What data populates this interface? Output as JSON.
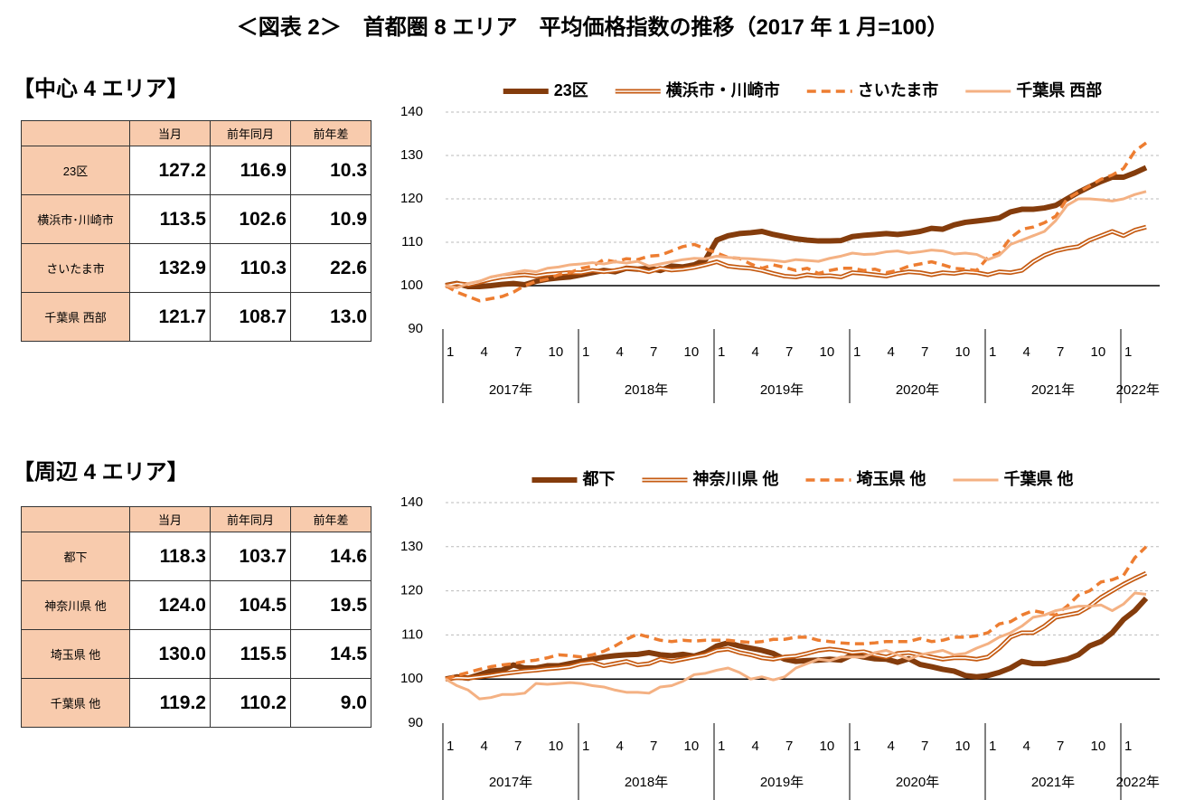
{
  "title": "＜図表 2＞　首都圏 8 エリア　平均価格指数の推移（2017 年 1 月=100）",
  "sections": [
    {
      "heading": "【中心 4 エリア】",
      "table": {
        "header": [
          "当月",
          "前年同月",
          "前年差"
        ],
        "rows": [
          [
            "23区",
            "127.2",
            "116.9",
            "10.3"
          ],
          [
            "横浜市･川崎市",
            "113.5",
            "102.6",
            "10.9"
          ],
          [
            "さいたま市",
            "132.9",
            "110.3",
            "22.6"
          ],
          [
            "千葉県 西部",
            "121.7",
            "108.7",
            "13.0"
          ]
        ]
      }
    },
    {
      "heading": "【周辺 4 エリア】",
      "table": {
        "header": [
          "当月",
          "前年同月",
          "前年差"
        ],
        "rows": [
          [
            "都下",
            "118.3",
            "103.7",
            "14.6"
          ],
          [
            "神奈川県 他",
            "124.0",
            "104.5",
            "19.5"
          ],
          [
            "埼玉県 他",
            "130.0",
            "115.5",
            "14.5"
          ],
          [
            "千葉県 他",
            "119.2",
            "110.2",
            "9.0"
          ]
        ]
      }
    }
  ],
  "chart_data": [
    {
      "type": "line",
      "legend": "top",
      "grid": true,
      "reference_line": 100,
      "ylim": [
        90,
        140
      ],
      "yticks": [
        90,
        100,
        110,
        120,
        130,
        140
      ],
      "categories": [
        "1",
        null,
        null,
        "4",
        null,
        null,
        "7",
        null,
        null,
        "10",
        null,
        null,
        "1",
        null,
        null,
        "4",
        null,
        null,
        "7",
        null,
        null,
        "10",
        null,
        null,
        "1",
        null,
        null,
        "4",
        null,
        null,
        "7",
        null,
        null,
        "10",
        null,
        null,
        "1",
        null,
        null,
        "4",
        null,
        null,
        "7",
        null,
        null,
        "10",
        null,
        null,
        "1",
        null,
        null,
        "4",
        null,
        null,
        "7",
        null,
        null,
        "10",
        null,
        null,
        "1",
        null,
        null
      ],
      "groups": [
        "2017年",
        "2018年",
        "2019年",
        "2020年",
        "2021年",
        "2022年"
      ],
      "series": [
        {
          "name": "23区",
          "color": "#843C0C",
          "style": "thick",
          "values": [
            100,
            100.5,
            99.8,
            99.8,
            100,
            100.3,
            100.5,
            100.2,
            101,
            101.5,
            101.8,
            102,
            102.5,
            103,
            103.5,
            103.2,
            104,
            103.8,
            104,
            103.5,
            104.5,
            104.3,
            104.8,
            106,
            110.5,
            111.5,
            112,
            112.2,
            112.5,
            111.8,
            111.3,
            110.8,
            110.5,
            110.3,
            110.3,
            110.4,
            111.3,
            111.6,
            111.8,
            112,
            111.8,
            112.1,
            112.5,
            113.2,
            113,
            114,
            114.6,
            114.9,
            115.2,
            115.6,
            117,
            117.6,
            117.6,
            117.9,
            118.5,
            120,
            121.5,
            122.8,
            124,
            125,
            125,
            126,
            127.2
          ]
        },
        {
          "name": "横浜市・川崎市",
          "color": "#C55A11",
          "style": "double",
          "values": [
            100,
            100.5,
            100.2,
            100.8,
            101.5,
            102,
            102.3,
            102.5,
            102.2,
            102.6,
            102.8,
            103,
            103,
            103.5,
            103.2,
            103.5,
            104,
            103.8,
            103.2,
            104,
            103.6,
            103.8,
            104.2,
            104.8,
            105.5,
            104.5,
            104.2,
            104,
            103.5,
            102.8,
            102.2,
            102,
            102.5,
            102.2,
            102.3,
            102,
            103,
            102.8,
            102.5,
            102.2,
            102.8,
            103.2,
            103,
            102.5,
            103,
            102.8,
            103.2,
            103,
            102.5,
            103.2,
            103,
            103.5,
            105.5,
            107,
            108,
            108.6,
            109,
            110.5,
            111.5,
            112.5,
            111.5,
            112.8,
            113.5
          ]
        },
        {
          "name": "さいたま市",
          "color": "#ED7D31",
          "style": "dashed",
          "values": [
            100,
            98.5,
            97.5,
            96.5,
            97,
            97.5,
            98.5,
            100,
            101,
            101.5,
            102.5,
            103,
            104,
            104.5,
            106,
            105.5,
            106.2,
            106,
            106.8,
            107,
            108,
            109,
            109.5,
            108.5,
            107.5,
            106.5,
            106.3,
            105,
            104,
            104.8,
            104.2,
            103.5,
            104,
            102.8,
            103.5,
            104,
            104,
            103.5,
            103.8,
            103,
            103.5,
            104.5,
            105,
            105.5,
            104.8,
            104,
            103.8,
            103.5,
            106.5,
            107.5,
            111,
            113,
            113.5,
            114.5,
            116,
            120,
            121.5,
            123,
            124.5,
            125.5,
            127,
            131,
            132.9
          ]
        },
        {
          "name": "千葉県 西部",
          "color": "#F4B183",
          "style": "solid",
          "values": [
            100,
            99.5,
            100.5,
            101,
            102,
            102.5,
            103,
            103.5,
            103.2,
            104,
            104.3,
            104.8,
            105,
            105.3,
            105,
            105.5,
            105.2,
            105.6,
            104.5,
            105,
            105.5,
            106,
            106.3,
            106.2,
            106.8,
            106.5,
            106.3,
            106.2,
            106,
            105.8,
            105.5,
            106,
            105.8,
            105.6,
            106.3,
            106.8,
            107.5,
            107.2,
            107.3,
            107.8,
            108,
            107.5,
            107.8,
            108.2,
            108,
            107.3,
            107.5,
            107.2,
            106,
            107,
            109.5,
            110.5,
            111.5,
            112.5,
            115,
            118.5,
            120,
            120,
            119.8,
            119.5,
            120,
            121,
            121.7
          ]
        }
      ]
    },
    {
      "type": "line",
      "legend": "top",
      "grid": true,
      "reference_line": 100,
      "ylim": [
        90,
        140
      ],
      "yticks": [
        90,
        100,
        110,
        120,
        130,
        140
      ],
      "categories": [
        "1",
        null,
        null,
        "4",
        null,
        null,
        "7",
        null,
        null,
        "10",
        null,
        null,
        "1",
        null,
        null,
        "4",
        null,
        null,
        "7",
        null,
        null,
        "10",
        null,
        null,
        "1",
        null,
        null,
        "4",
        null,
        null,
        "7",
        null,
        null,
        "10",
        null,
        null,
        "1",
        null,
        null,
        "4",
        null,
        null,
        "7",
        null,
        null,
        "10",
        null,
        null,
        "1",
        null,
        null,
        "4",
        null,
        null,
        "7",
        null,
        null,
        "10",
        null,
        null,
        "1",
        null,
        null
      ],
      "groups": [
        "2017年",
        "2018年",
        "2019年",
        "2020年",
        "2021年",
        "2022年"
      ],
      "series": [
        {
          "name": "都下",
          "color": "#843C0C",
          "style": "thick",
          "values": [
            100,
            100.5,
            100.2,
            101,
            101.8,
            102,
            103.2,
            102.5,
            102.5,
            103,
            103,
            103.5,
            104,
            104.5,
            105,
            105.3,
            105.5,
            105.6,
            106,
            105.5,
            105.3,
            105.6,
            105.2,
            106,
            107.5,
            108.2,
            107.5,
            107,
            106.5,
            105.8,
            104.5,
            104,
            104.2,
            104.3,
            104.5,
            104.3,
            105.5,
            105,
            104.6,
            104.5,
            103.8,
            104.6,
            103.3,
            102.8,
            102.2,
            101.8,
            100.8,
            100.5,
            100.8,
            101.5,
            102.5,
            104,
            103.5,
            103.5,
            104,
            104.5,
            105.5,
            107.5,
            108.5,
            110.5,
            113.5,
            115.5,
            118.3
          ]
        },
        {
          "name": "神奈川県 他",
          "color": "#C55A11",
          "style": "double",
          "values": [
            100,
            100.3,
            100.2,
            100.5,
            100.8,
            101.2,
            101.5,
            101.8,
            102,
            102.3,
            102.5,
            102.8,
            103.5,
            103.8,
            103,
            103.5,
            104,
            103.2,
            103.5,
            104.5,
            104,
            104.5,
            105,
            105.5,
            106.5,
            106.8,
            106,
            105.5,
            104.8,
            104.5,
            105,
            105.2,
            105.8,
            106.5,
            106.8,
            106.5,
            106,
            106.2,
            105.5,
            105,
            105.8,
            106,
            105.5,
            105,
            104.5,
            104.8,
            104.8,
            104.5,
            105,
            107,
            109.5,
            110.5,
            110.5,
            112,
            114,
            114.5,
            115,
            116.5,
            118.5,
            120,
            121.5,
            122.8,
            124
          ]
        },
        {
          "name": "埼玉県 他",
          "color": "#ED7D31",
          "style": "dashed",
          "values": [
            100,
            100.8,
            101.5,
            102.2,
            102.8,
            103.2,
            103.5,
            104,
            104.3,
            104.8,
            105.5,
            105.3,
            105,
            105.5,
            106.3,
            107.5,
            109,
            110.2,
            109.5,
            108.8,
            108.5,
            108.8,
            108.6,
            108.8,
            108.8,
            108.8,
            108.5,
            108.3,
            108.5,
            109,
            109,
            109.5,
            109.5,
            108.8,
            108.5,
            108.2,
            108,
            108,
            108.2,
            108.5,
            108.5,
            108.5,
            109.2,
            108.5,
            108.8,
            109.5,
            109.5,
            109.8,
            110.5,
            112.5,
            113,
            114.5,
            115.5,
            115,
            114.5,
            116.5,
            119,
            120,
            122,
            122.5,
            123.5,
            127.5,
            130
          ]
        },
        {
          "name": "千葉県 他",
          "color": "#F4B183",
          "style": "solid",
          "values": [
            100,
            98.5,
            97.5,
            95.5,
            95.8,
            96.5,
            96.5,
            96.8,
            99,
            98.8,
            99,
            99.2,
            99,
            98.5,
            98.2,
            97.5,
            97,
            97,
            96.8,
            98.2,
            98.5,
            99.5,
            101,
            101.3,
            102,
            102.5,
            101.5,
            100,
            100.5,
            99.8,
            100.5,
            102.5,
            103.5,
            104.5,
            104.2,
            105,
            105,
            105,
            106,
            106.5,
            105.5,
            104.5,
            105.5,
            106,
            106.5,
            105.5,
            105.8,
            107,
            108,
            109.5,
            110.5,
            112,
            114,
            114.5,
            115.5,
            116,
            116.5,
            116.5,
            116.8,
            115.5,
            117,
            119.5,
            119.2
          ]
        }
      ]
    }
  ]
}
